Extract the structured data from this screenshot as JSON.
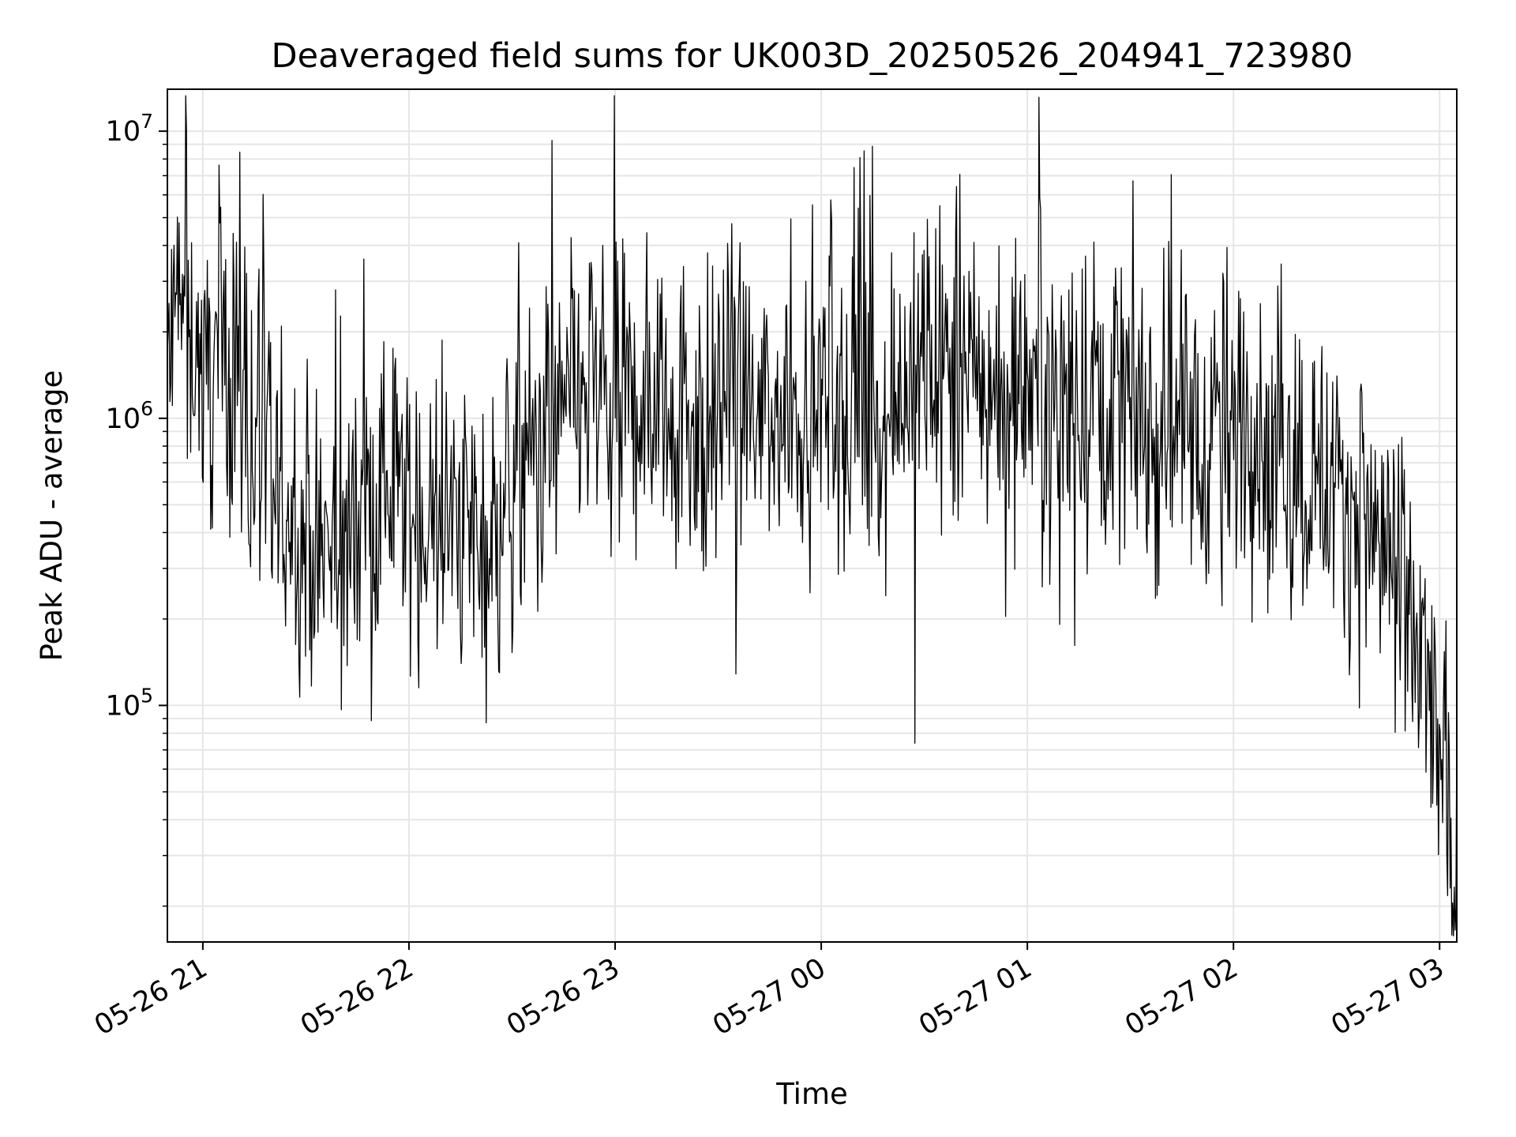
{
  "chart_data": {
    "type": "line",
    "title": "Deaveraged field sums for UK003D_20250526_204941_723980",
    "xlabel": "Time",
    "ylabel": "Peak ADU - average",
    "x_range": [
      "2025-05-26 20:49:41",
      "2025-05-27 03:05:00"
    ],
    "y_scale": "log",
    "ylim": [
      15000,
      14000000
    ],
    "grid": true,
    "x_ticks": [
      {
        "time": "2025-05-26 21:00",
        "label": "05-26 21"
      },
      {
        "time": "2025-05-26 22:00",
        "label": "05-26 22"
      },
      {
        "time": "2025-05-26 23:00",
        "label": "05-26 23"
      },
      {
        "time": "2025-05-27 00:00",
        "label": "05-27 00"
      },
      {
        "time": "2025-05-27 01:00",
        "label": "05-27 01"
      },
      {
        "time": "2025-05-27 02:00",
        "label": "05-27 02"
      },
      {
        "time": "2025-05-27 03:00",
        "label": "05-27 03"
      }
    ],
    "y_ticks": [
      {
        "value": 100000,
        "base": "10",
        "exp": "5"
      },
      {
        "value": 1000000,
        "base": "10",
        "exp": "6"
      },
      {
        "value": 10000000,
        "base": "10",
        "exp": "7"
      }
    ],
    "line_color": "#000000",
    "grid_color": "#e6e6e6",
    "series": [
      {
        "x": [
          "2025-05-26 20:49:41",
          "2025-05-26 20:55",
          "2025-05-26 21:00",
          "2025-05-26 21:05",
          "2025-05-26 21:10",
          "2025-05-26 21:15",
          "2025-05-26 21:20",
          "2025-05-26 21:25",
          "2025-05-26 21:30",
          "2025-05-26 21:35",
          "2025-05-26 21:40",
          "2025-05-26 21:45",
          "2025-05-26 21:50",
          "2025-05-26 21:55",
          "2025-05-26 22:00",
          "2025-05-26 22:05",
          "2025-05-26 22:10",
          "2025-05-26 22:15",
          "2025-05-26 22:20",
          "2025-05-26 22:25",
          "2025-05-26 22:30",
          "2025-05-26 22:35",
          "2025-05-26 22:40",
          "2025-05-26 22:45",
          "2025-05-26 22:50",
          "2025-05-26 22:55",
          "2025-05-26 23:00",
          "2025-05-26 23:05",
          "2025-05-26 23:10",
          "2025-05-26 23:15",
          "2025-05-26 23:20",
          "2025-05-26 23:25",
          "2025-05-26 23:30",
          "2025-05-26 23:35",
          "2025-05-26 23:40",
          "2025-05-26 23:45",
          "2025-05-26 23:50",
          "2025-05-26 23:55",
          "2025-05-27 00:00",
          "2025-05-27 00:05",
          "2025-05-27 00:10",
          "2025-05-27 00:15",
          "2025-05-27 00:20",
          "2025-05-27 00:25",
          "2025-05-27 00:30",
          "2025-05-27 00:35",
          "2025-05-27 00:40",
          "2025-05-27 00:45",
          "2025-05-27 00:50",
          "2025-05-27 00:55",
          "2025-05-27 01:00",
          "2025-05-27 01:05",
          "2025-05-27 01:10",
          "2025-05-27 01:15",
          "2025-05-27 01:20",
          "2025-05-27 01:25",
          "2025-05-27 01:30",
          "2025-05-27 01:35",
          "2025-05-27 01:40",
          "2025-05-27 01:45",
          "2025-05-27 01:50",
          "2025-05-27 01:55",
          "2025-05-27 02:00",
          "2025-05-27 02:05",
          "2025-05-27 02:10",
          "2025-05-27 02:15",
          "2025-05-27 02:20",
          "2025-05-27 02:25",
          "2025-05-27 02:30",
          "2025-05-27 02:35",
          "2025-05-27 02:40",
          "2025-05-27 02:45",
          "2025-05-27 02:50",
          "2025-05-27 02:55",
          "2025-05-27 03:00",
          "2025-05-27 03:02",
          "2025-05-27 03:05"
        ],
        "y": [
          1500000,
          2500000,
          1400000,
          1600000,
          1700000,
          900000,
          500000,
          500000,
          420000,
          350000,
          300000,
          480000,
          500000,
          600000,
          550000,
          400000,
          380000,
          450000,
          420000,
          380000,
          600000,
          700000,
          900000,
          1000000,
          1200000,
          1300000,
          1000000,
          1100000,
          1200000,
          1250000,
          1100000,
          900000,
          1100000,
          1200000,
          1000000,
          900000,
          1200000,
          1100000,
          1300000,
          900000,
          1000000,
          1100000,
          1200000,
          1300000,
          1400000,
          1500000,
          1300000,
          1400000,
          1300000,
          1200000,
          1500000,
          1400000,
          1300000,
          1200000,
          1300000,
          1250000,
          1200000,
          1000000,
          900000,
          1100000,
          800000,
          1000000,
          900000,
          1000000,
          800000,
          700000,
          700000,
          600000,
          600000,
          500000,
          400000,
          350000,
          200000,
          130000,
          70000,
          45000,
          20000
        ]
      }
    ]
  }
}
